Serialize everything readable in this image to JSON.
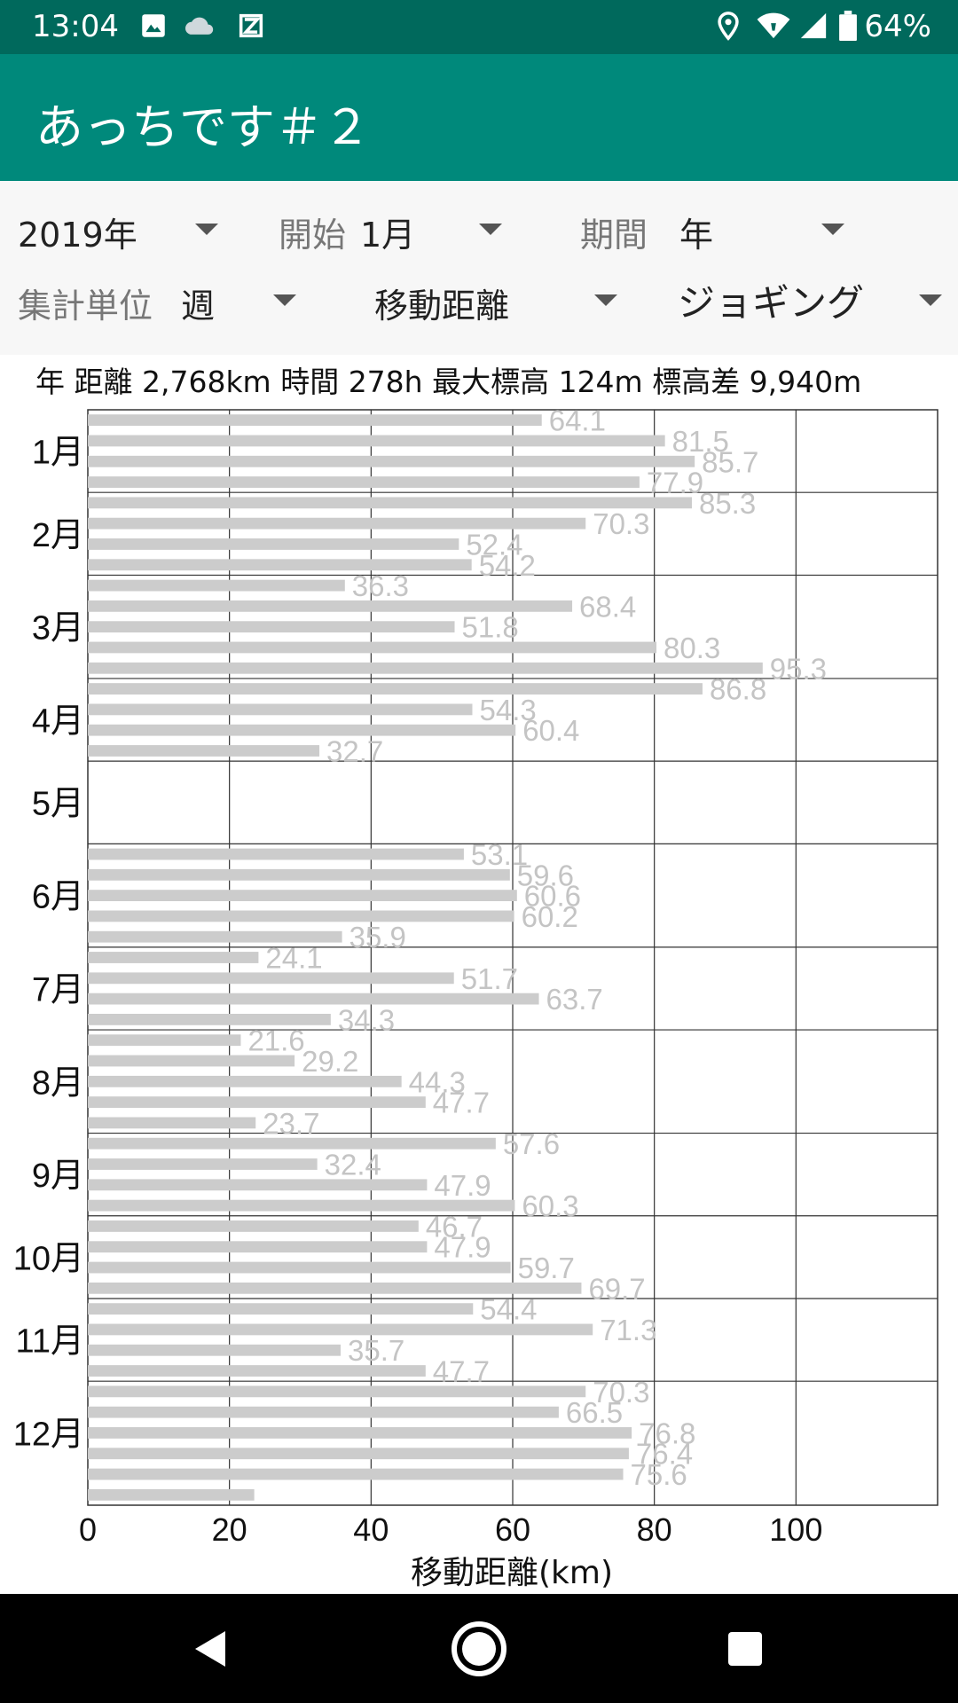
{
  "status_bar": {
    "time": "13:04",
    "battery_text": "64%",
    "left_icons": [
      "image-icon",
      "cloud-icon",
      "app-z-icon"
    ],
    "right_icons": [
      "location-icon",
      "wifi-icon",
      "signal-icon",
      "battery-icon"
    ]
  },
  "app_bar": {
    "title": "あっちです＃２",
    "color": "#00897b",
    "status_color": "#00695c"
  },
  "filters": {
    "year": "2019年",
    "start_label": "開始",
    "start_value": "1月",
    "period_label": "期間",
    "period_value": "年",
    "unit_label": "集計単位",
    "unit_value": "週",
    "metric_value": "移動距離",
    "activity_value": "ジョギング"
  },
  "summary": "年 距離 2,768km 時間 278h 最大標高 124m 標高差 9,940m",
  "chart_data": {
    "type": "bar",
    "orientation": "horizontal",
    "xlabel": "移動距離(km)",
    "xlim": [
      0,
      120
    ],
    "x_ticks": [
      "0",
      "20",
      "40",
      "60",
      "80",
      "100"
    ],
    "x_tick_values": [
      0,
      20,
      40,
      60,
      80,
      100
    ],
    "categories": [
      "1月",
      "2月",
      "3月",
      "4月",
      "5月",
      "6月",
      "7月",
      "8月",
      "9月",
      "10月",
      "11月",
      "12月"
    ],
    "bar_color": "#cccccc",
    "label_color": "#c4c4c4",
    "grid": true,
    "weekly_values": [
      64.1,
      81.5,
      85.7,
      77.9,
      85.3,
      70.3,
      52.4,
      54.2,
      36.3,
      68.4,
      51.8,
      80.3,
      95.3,
      86.8,
      54.3,
      60.4,
      32.7,
      0,
      0,
      0,
      0,
      53.1,
      59.6,
      60.6,
      60.2,
      35.9,
      24.1,
      51.7,
      63.7,
      34.3,
      21.6,
      29.2,
      44.3,
      47.7,
      23.7,
      57.6,
      32.4,
      47.9,
      60.3,
      46.7,
      47.9,
      59.7,
      69.7,
      54.4,
      71.3,
      35.7,
      47.7,
      70.3,
      66.5,
      76.8,
      76.4,
      75.6,
      23.5
    ],
    "data_labels": [
      "64.1",
      "81.5",
      "85.7",
      "77.9",
      "85.3",
      "70.3",
      "52.4",
      "54.2",
      "36.3",
      "68.4",
      "51.8",
      "80.3",
      "95.3",
      "86.8",
      "54.3",
      "60.4",
      "32.7",
      "",
      "",
      "",
      "",
      "53.1",
      "59.6",
      "60.6",
      "60.2",
      "35.9",
      "24.1",
      "51.7",
      "63.7",
      "34.3",
      "21.6",
      "29.2",
      "44.3",
      "47.7",
      "23.7",
      "57.6",
      "32.4",
      "47.9",
      "60.3",
      "46.7",
      "47.9",
      "59.7",
      "69.7",
      "54.4",
      "71.3",
      "35.7",
      "47.7",
      "70.3",
      "66.5",
      "76.8",
      "76.4",
      "75.6",
      ""
    ]
  }
}
